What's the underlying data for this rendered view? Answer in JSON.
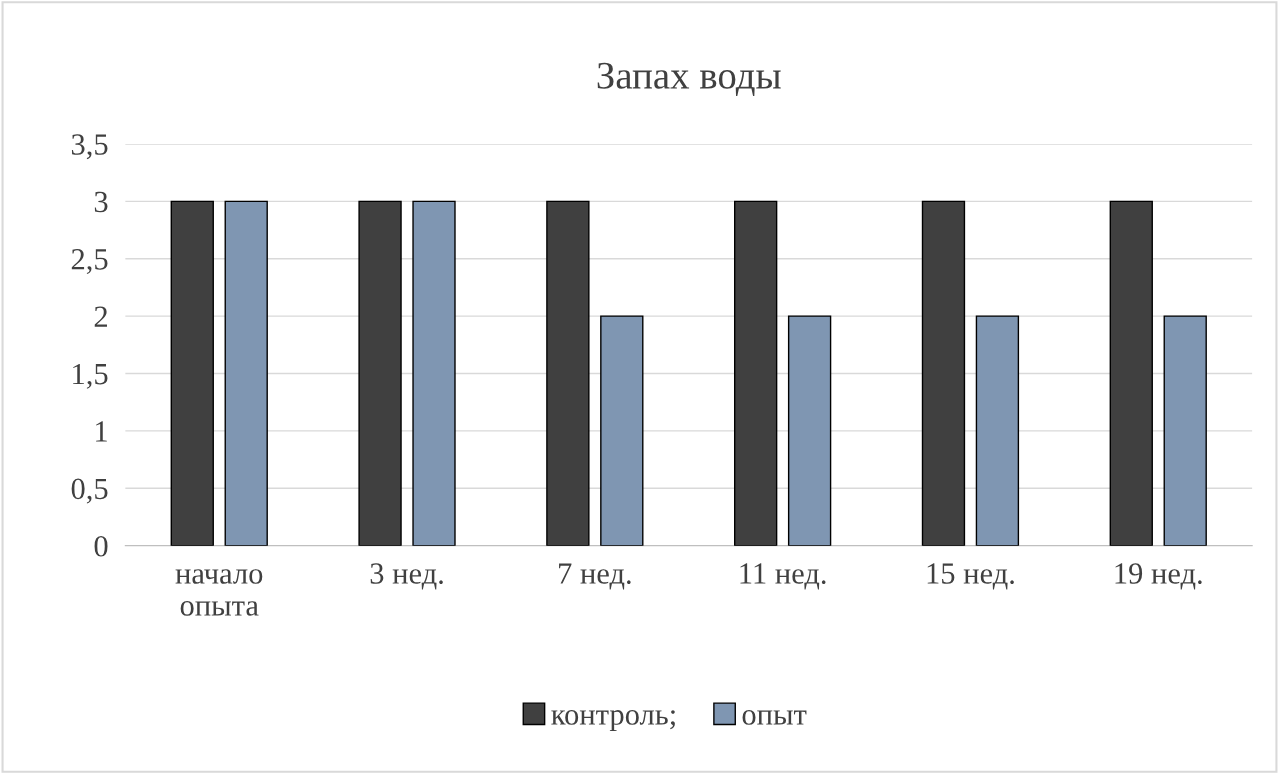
{
  "chart_data": {
    "type": "bar",
    "title": "Запах воды",
    "categories": [
      "начало\nопыта",
      "3 нед.",
      "7 нед.",
      "11 нед.",
      "15 нед.",
      "19 нед."
    ],
    "series": [
      {
        "name": "контроль;",
        "color": "#404040",
        "values": [
          3,
          3,
          3,
          3,
          3,
          3
        ]
      },
      {
        "name": "опыт",
        "color": "#7f96b2",
        "values": [
          3,
          3,
          2,
          2,
          2,
          2
        ]
      }
    ],
    "ylim": [
      0,
      3.5
    ],
    "yticks": [
      0,
      {
        "value": 0.5,
        "label": "0,5"
      },
      1,
      {
        "value": 1.5,
        "label": "1,5"
      },
      2,
      {
        "value": 2.5,
        "label": "2,5"
      },
      3,
      {
        "value": 3.5,
        "label": "3,5"
      }
    ],
    "grid": "y",
    "legend": "bottom"
  }
}
